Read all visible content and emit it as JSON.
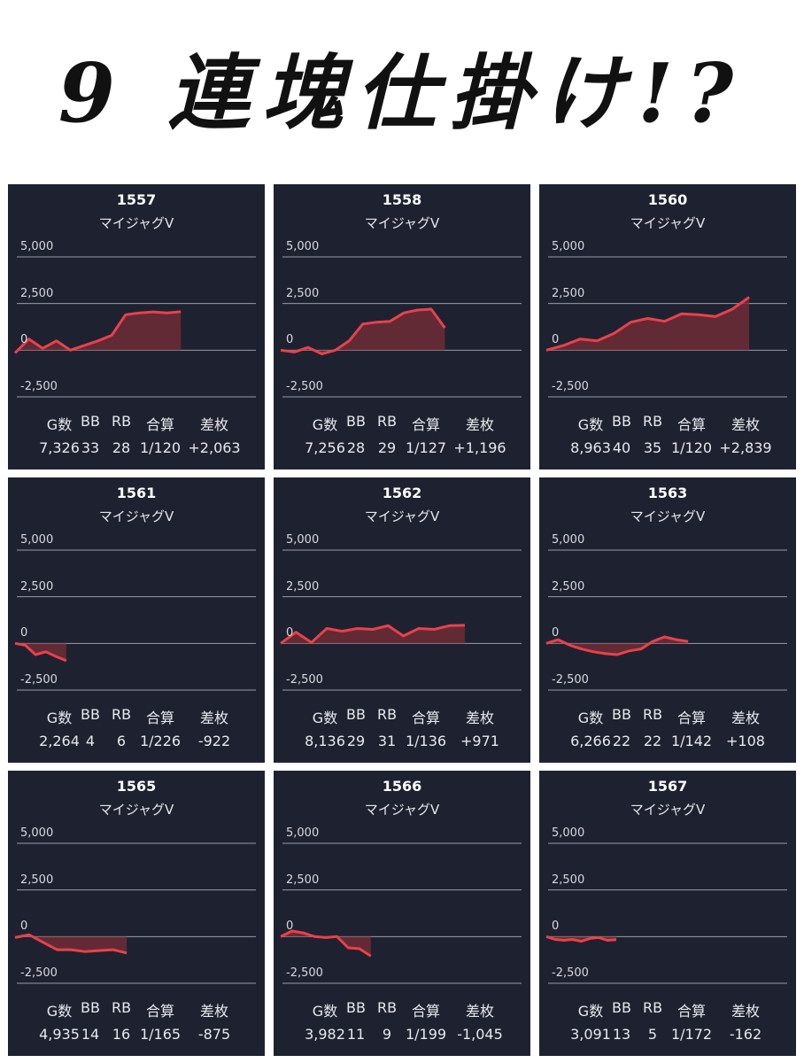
{
  "title": "9 連塊仕掛け!?",
  "stat_headers": [
    "G数",
    "BB",
    "RB",
    "合算",
    "差枚"
  ],
  "colors": {
    "panel_bg": "#1e2230",
    "line": "#e8414b",
    "fill": "#7a2d35",
    "grid": "#9a9ca6"
  },
  "panels": [
    {
      "machine": "1557",
      "model": "マイジャグV",
      "y_ticks": [
        "5,000",
        "2,500",
        "0",
        "-2,500"
      ],
      "stats": [
        "7,326",
        "33",
        "28",
        "1/120",
        "+2,063"
      ]
    },
    {
      "machine": "1558",
      "model": "マイジャグV",
      "y_ticks": [
        "5,000",
        "2,500",
        "0",
        "-2,500"
      ],
      "stats": [
        "7,256",
        "28",
        "29",
        "1/127",
        "+1,196"
      ]
    },
    {
      "machine": "1560",
      "model": "マイジャグV",
      "y_ticks": [
        "5,000",
        "2,500",
        "0",
        "-2,500"
      ],
      "stats": [
        "8,963",
        "40",
        "35",
        "1/120",
        "+2,839"
      ]
    },
    {
      "machine": "1561",
      "model": "マイジャグV",
      "y_ticks": [
        "5,000",
        "2,500",
        "0",
        "-2,500"
      ],
      "stats": [
        "2,264",
        "4",
        "6",
        "1/226",
        "-922"
      ]
    },
    {
      "machine": "1562",
      "model": "マイジャグV",
      "y_ticks": [
        "5,000",
        "2,500",
        "0",
        "-2,500"
      ],
      "stats": [
        "8,136",
        "29",
        "31",
        "1/136",
        "+971"
      ]
    },
    {
      "machine": "1563",
      "model": "マイジャグV",
      "y_ticks": [
        "5,000",
        "2,500",
        "0",
        "-2,500"
      ],
      "stats": [
        "6,266",
        "22",
        "22",
        "1/142",
        "+108"
      ]
    },
    {
      "machine": "1565",
      "model": "マイジャグV",
      "y_ticks": [
        "5,000",
        "2,500",
        "0",
        "-2,500"
      ],
      "stats": [
        "4,935",
        "14",
        "16",
        "1/165",
        "-875"
      ]
    },
    {
      "machine": "1566",
      "model": "マイジャグV",
      "y_ticks": [
        "5,000",
        "2,500",
        "0",
        "-2,500"
      ],
      "stats": [
        "3,982",
        "11",
        "9",
        "1/199",
        "-1,045"
      ]
    },
    {
      "machine": "1567",
      "model": "マイジャグV",
      "y_ticks": [
        "5,000",
        "2,500",
        "0",
        "-2,500"
      ],
      "stats": [
        "3,091",
        "13",
        "5",
        "1/172",
        "-162"
      ]
    }
  ],
  "chart_data": [
    {
      "type": "area",
      "title": "1557",
      "ylim": [
        -2500,
        5000
      ],
      "grid": true,
      "x": [
        0,
        1,
        2,
        3,
        4,
        5,
        6,
        7,
        8,
        9,
        10,
        11,
        12
      ],
      "values": [
        -150,
        600,
        100,
        500,
        0,
        250,
        500,
        800,
        1900,
        2000,
        2050,
        2000,
        2063
      ]
    },
    {
      "type": "area",
      "title": "1558",
      "ylim": [
        -2500,
        5000
      ],
      "grid": true,
      "x": [
        0,
        1,
        2,
        3,
        4,
        5,
        6,
        7,
        8,
        9,
        10,
        11,
        12
      ],
      "values": [
        0,
        -100,
        150,
        -200,
        0,
        500,
        1400,
        1500,
        1550,
        2000,
        2150,
        2200,
        1196
      ]
    },
    {
      "type": "area",
      "title": "1560",
      "ylim": [
        -2500,
        5000
      ],
      "grid": true,
      "x": [
        0,
        1,
        2,
        3,
        4,
        5,
        6,
        7,
        8,
        9,
        10,
        11,
        12
      ],
      "values": [
        0,
        250,
        600,
        500,
        900,
        1500,
        1700,
        1550,
        1950,
        1900,
        1800,
        2200,
        2839
      ]
    },
    {
      "type": "area",
      "title": "1561",
      "ylim": [
        -2500,
        5000
      ],
      "grid": true,
      "x": [
        0,
        1,
        2,
        3,
        4,
        5
      ],
      "values": [
        0,
        -100,
        -600,
        -450,
        -700,
        -922
      ]
    },
    {
      "type": "area",
      "title": "1562",
      "ylim": [
        -2500,
        5000
      ],
      "grid": true,
      "x": [
        0,
        1,
        2,
        3,
        4,
        5,
        6,
        7,
        8,
        9,
        10,
        11,
        12
      ],
      "values": [
        0,
        600,
        50,
        800,
        650,
        800,
        750,
        950,
        400,
        800,
        750,
        950,
        971
      ]
    },
    {
      "type": "area",
      "title": "1563",
      "ylim": [
        -2500,
        5000
      ],
      "grid": true,
      "x": [
        0,
        1,
        2,
        3,
        4,
        5,
        6,
        7,
        8,
        9,
        10,
        11,
        12
      ],
      "values": [
        0,
        200,
        -100,
        -300,
        -450,
        -550,
        -600,
        -400,
        -300,
        100,
        350,
        200,
        108
      ]
    },
    {
      "type": "area",
      "title": "1565",
      "ylim": [
        -2500,
        5000
      ],
      "grid": true,
      "x": [
        0,
        1,
        2,
        3,
        4,
        5,
        6,
        7,
        8
      ],
      "values": [
        -50,
        100,
        -300,
        -700,
        -700,
        -800,
        -750,
        -700,
        -875
      ]
    },
    {
      "type": "area",
      "title": "1566",
      "ylim": [
        -2500,
        5000
      ],
      "grid": true,
      "x": [
        0,
        1,
        2,
        3,
        4,
        5,
        6,
        7,
        8
      ],
      "values": [
        0,
        300,
        200,
        0,
        -50,
        0,
        -600,
        -650,
        -1045
      ]
    },
    {
      "type": "area",
      "title": "1567",
      "ylim": [
        -2500,
        5000
      ],
      "grid": true,
      "x": [
        0,
        1,
        2,
        3,
        4,
        5,
        6,
        7,
        8
      ],
      "values": [
        0,
        -150,
        -200,
        -150,
        -250,
        -100,
        -50,
        -200,
        -162
      ]
    }
  ]
}
